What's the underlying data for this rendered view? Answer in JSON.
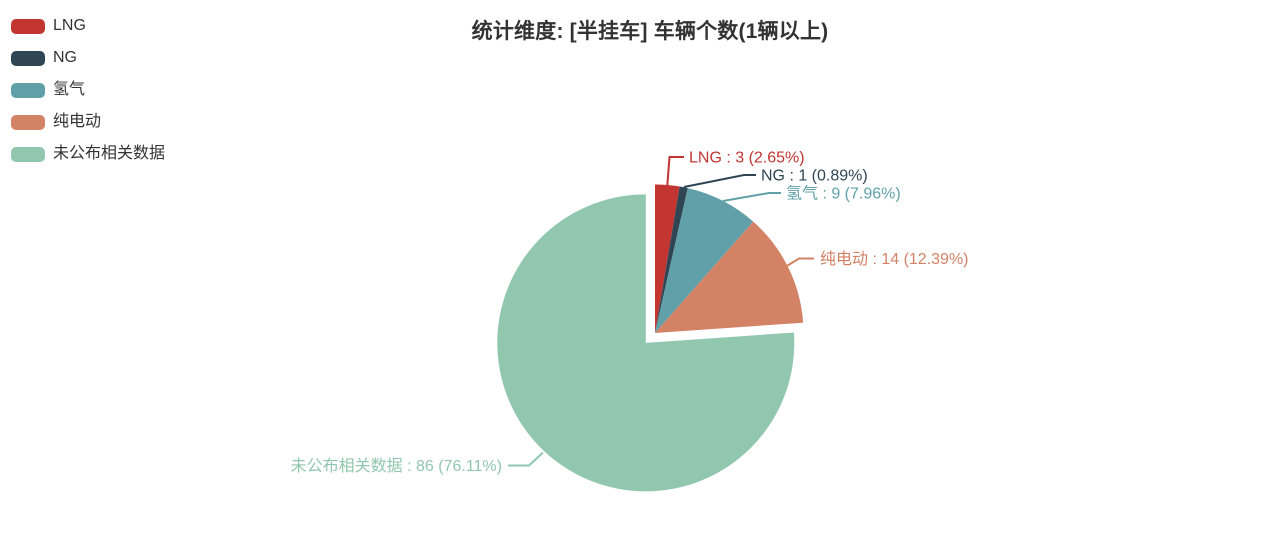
{
  "title": "统计维度: [半挂车] 车辆个数(1辆以上)",
  "background": "#ffffff",
  "text_color": "#333333",
  "legend": {
    "position": "top-left",
    "items": [
      "LNG",
      "NG",
      "氢气",
      "纯电动",
      "未公布相关数据"
    ]
  },
  "chart_data": {
    "type": "pie",
    "title": "统计维度: [半挂车] 车辆个数(1辆以上)",
    "legend_position": "top-left",
    "grid": "off",
    "total": 113,
    "start_angle": "12-o'clock",
    "direction": "clockwise",
    "selected_slice": "未公布相关数据",
    "label_format": "{name} : {value} ({percent}%)",
    "items": [
      {
        "name": "LNG",
        "value": 3,
        "percent": "2.65",
        "color": "#c23531"
      },
      {
        "name": "NG",
        "value": 1,
        "percent": "0.89",
        "color": "#2f4554"
      },
      {
        "name": "氢气",
        "value": 9,
        "percent": "7.96",
        "color": "#61a0a8"
      },
      {
        "name": "纯电动",
        "value": 14,
        "percent": "12.39",
        "color": "#d48265"
      },
      {
        "name": "未公布相关数据",
        "value": 86,
        "percent": "76.11",
        "color": "#91c7ae"
      }
    ]
  }
}
